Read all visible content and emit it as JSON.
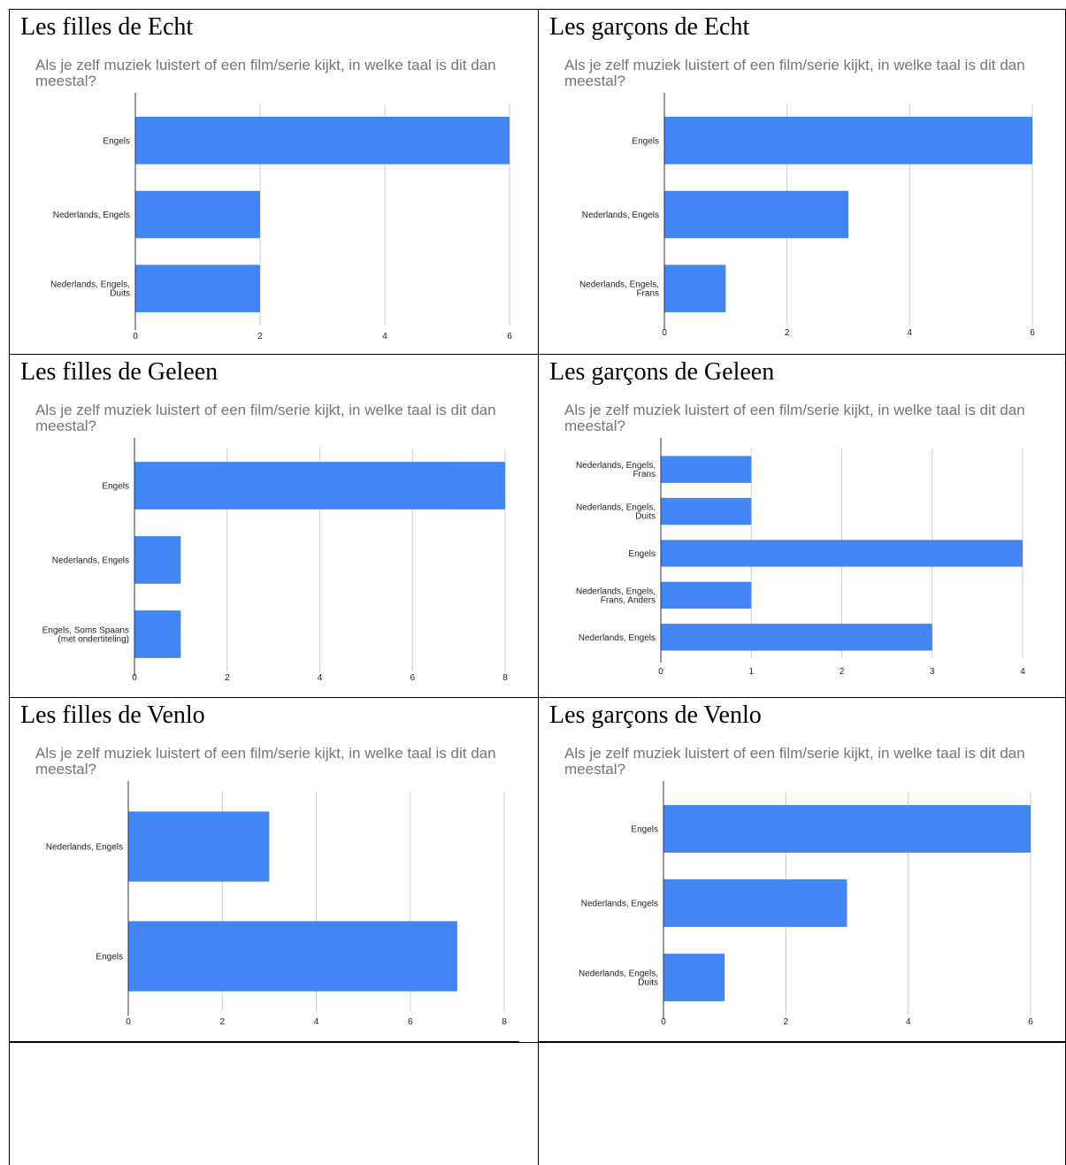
{
  "cells": [
    {
      "title": "Les filles de Echt",
      "chart_data": {
        "type": "bar",
        "orientation": "horizontal",
        "title": "Als je zelf muziek luistert of een film/serie kijkt, in welke taal is dit dan meestal?",
        "categories": [
          "Engels",
          "Nederlands, Engels",
          "Nederlands, Engels, Duits"
        ],
        "values": [
          6,
          2,
          2
        ],
        "xlim": [
          0,
          6
        ],
        "xticks": [
          0,
          2,
          4,
          6
        ],
        "grid": true,
        "color": "#4285F4"
      }
    },
    {
      "title": "Les garçons de Echt",
      "chart_data": {
        "type": "bar",
        "orientation": "horizontal",
        "title": "Als je zelf muziek luistert of een film/serie kijkt, in welke taal is dit dan meestal?",
        "categories": [
          "Engels",
          "Nederlands, Engels",
          "Nederlands, Engels, Frans"
        ],
        "values": [
          6,
          3,
          1
        ],
        "xlim": [
          0,
          6
        ],
        "xticks": [
          0,
          2,
          4,
          6
        ],
        "grid": true,
        "color": "#4285F4"
      }
    },
    {
      "title": "Les filles de Geleen",
      "chart_data": {
        "type": "bar",
        "orientation": "horizontal",
        "title": "Als je zelf muziek luistert of een film/serie kijkt, in welke taal is dit dan meestal?",
        "categories": [
          "Engels",
          "Nederlands, Engels",
          "Engels, Soms Spaans (met ondertiteling)"
        ],
        "values": [
          8,
          1,
          1
        ],
        "xlim": [
          0,
          8
        ],
        "xticks": [
          0,
          2,
          4,
          6,
          8
        ],
        "grid": true,
        "color": "#4285F4"
      }
    },
    {
      "title": "Les garçons de Geleen",
      "chart_data": {
        "type": "bar",
        "orientation": "horizontal",
        "title": "Als je zelf muziek luistert of een film/serie kijkt, in welke taal is dit dan meestal?",
        "categories": [
          "Nederlands, Engels, Frans",
          "Nederlands, Engels, Duits",
          "Engels",
          "Nederlands, Engels, Frans, Anders",
          "Nederlands, Engels"
        ],
        "values": [
          1,
          1,
          4,
          1,
          3
        ],
        "xlim": [
          0,
          4
        ],
        "xticks": [
          0,
          1,
          2,
          3,
          4
        ],
        "grid": true,
        "color": "#4285F4"
      }
    },
    {
      "title": "Les filles de Venlo",
      "chart_data": {
        "type": "bar",
        "orientation": "horizontal",
        "title": "Als je zelf muziek luistert of een film/serie kijkt, in welke taal is dit dan meestal?",
        "categories": [
          "Nederlands, Engels",
          "Engels"
        ],
        "values": [
          3,
          7
        ],
        "xlim": [
          0,
          8
        ],
        "xticks": [
          0,
          2,
          4,
          6,
          8
        ],
        "grid": true,
        "color": "#4285F4"
      }
    },
    {
      "title": "Les garçons de Venlo",
      "chart_data": {
        "type": "bar",
        "orientation": "horizontal",
        "title": "Als je zelf muziek luistert of een film/serie kijkt, in welke taal is dit dan meestal?",
        "categories": [
          "Engels",
          "Nederlands, Engels",
          "Nederlands, Engels, Duits"
        ],
        "values": [
          6,
          3,
          1
        ],
        "xlim": [
          0,
          6
        ],
        "xticks": [
          0,
          2,
          4,
          6
        ],
        "grid": true,
        "color": "#4285F4"
      }
    }
  ]
}
